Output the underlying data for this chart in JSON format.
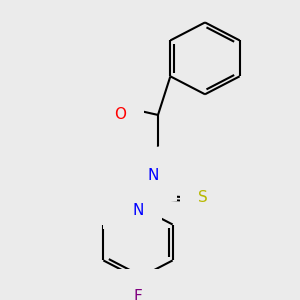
{
  "background_color": "#ebebeb",
  "bond_color": "#000000",
  "atom_colors": {
    "O": "#ff0000",
    "N": "#0000ff",
    "S": "#b8b800",
    "F": "#7f007f",
    "H_teal": "#008080",
    "C": "#000000"
  },
  "font_size_atoms": 11,
  "line_width": 1.5,
  "fig_width": 3.0,
  "fig_height": 3.0,
  "dpi": 100
}
